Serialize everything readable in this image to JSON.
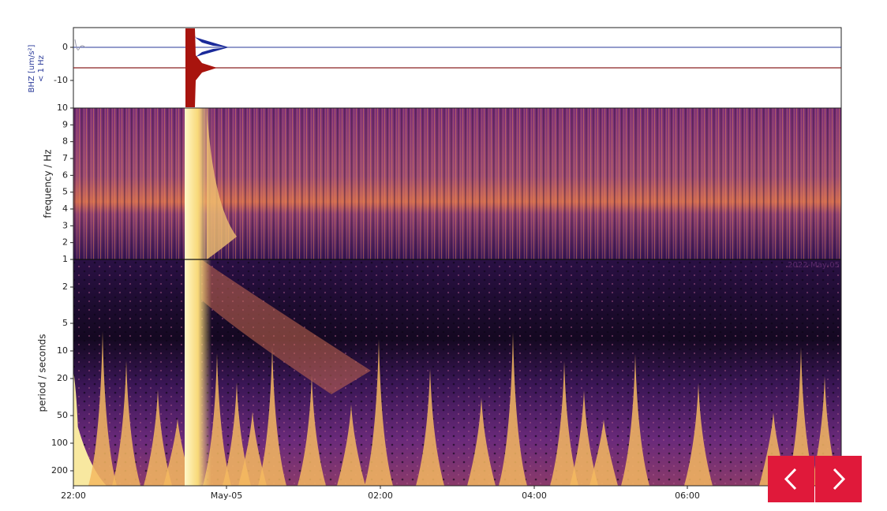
{
  "waveform": {
    "ylabel": [
      "BHZ [um/s²]",
      "< 1 Hz"
    ],
    "yticks": [
      "0",
      "-10"
    ]
  },
  "frequency": {
    "ylabel": "frequency / Hz",
    "yticks": [
      "1",
      "2",
      "3",
      "4",
      "5",
      "6",
      "7",
      "8",
      "9",
      "10"
    ]
  },
  "period": {
    "ylabel": "period / seconds",
    "yticks": [
      "2",
      "5",
      "10",
      "20",
      "50",
      "100",
      "200"
    ]
  },
  "xticks": [
    "22:00",
    "May-05",
    "02:00",
    "04:00",
    "06:00"
  ],
  "annotation": "2022-May-05"
}
